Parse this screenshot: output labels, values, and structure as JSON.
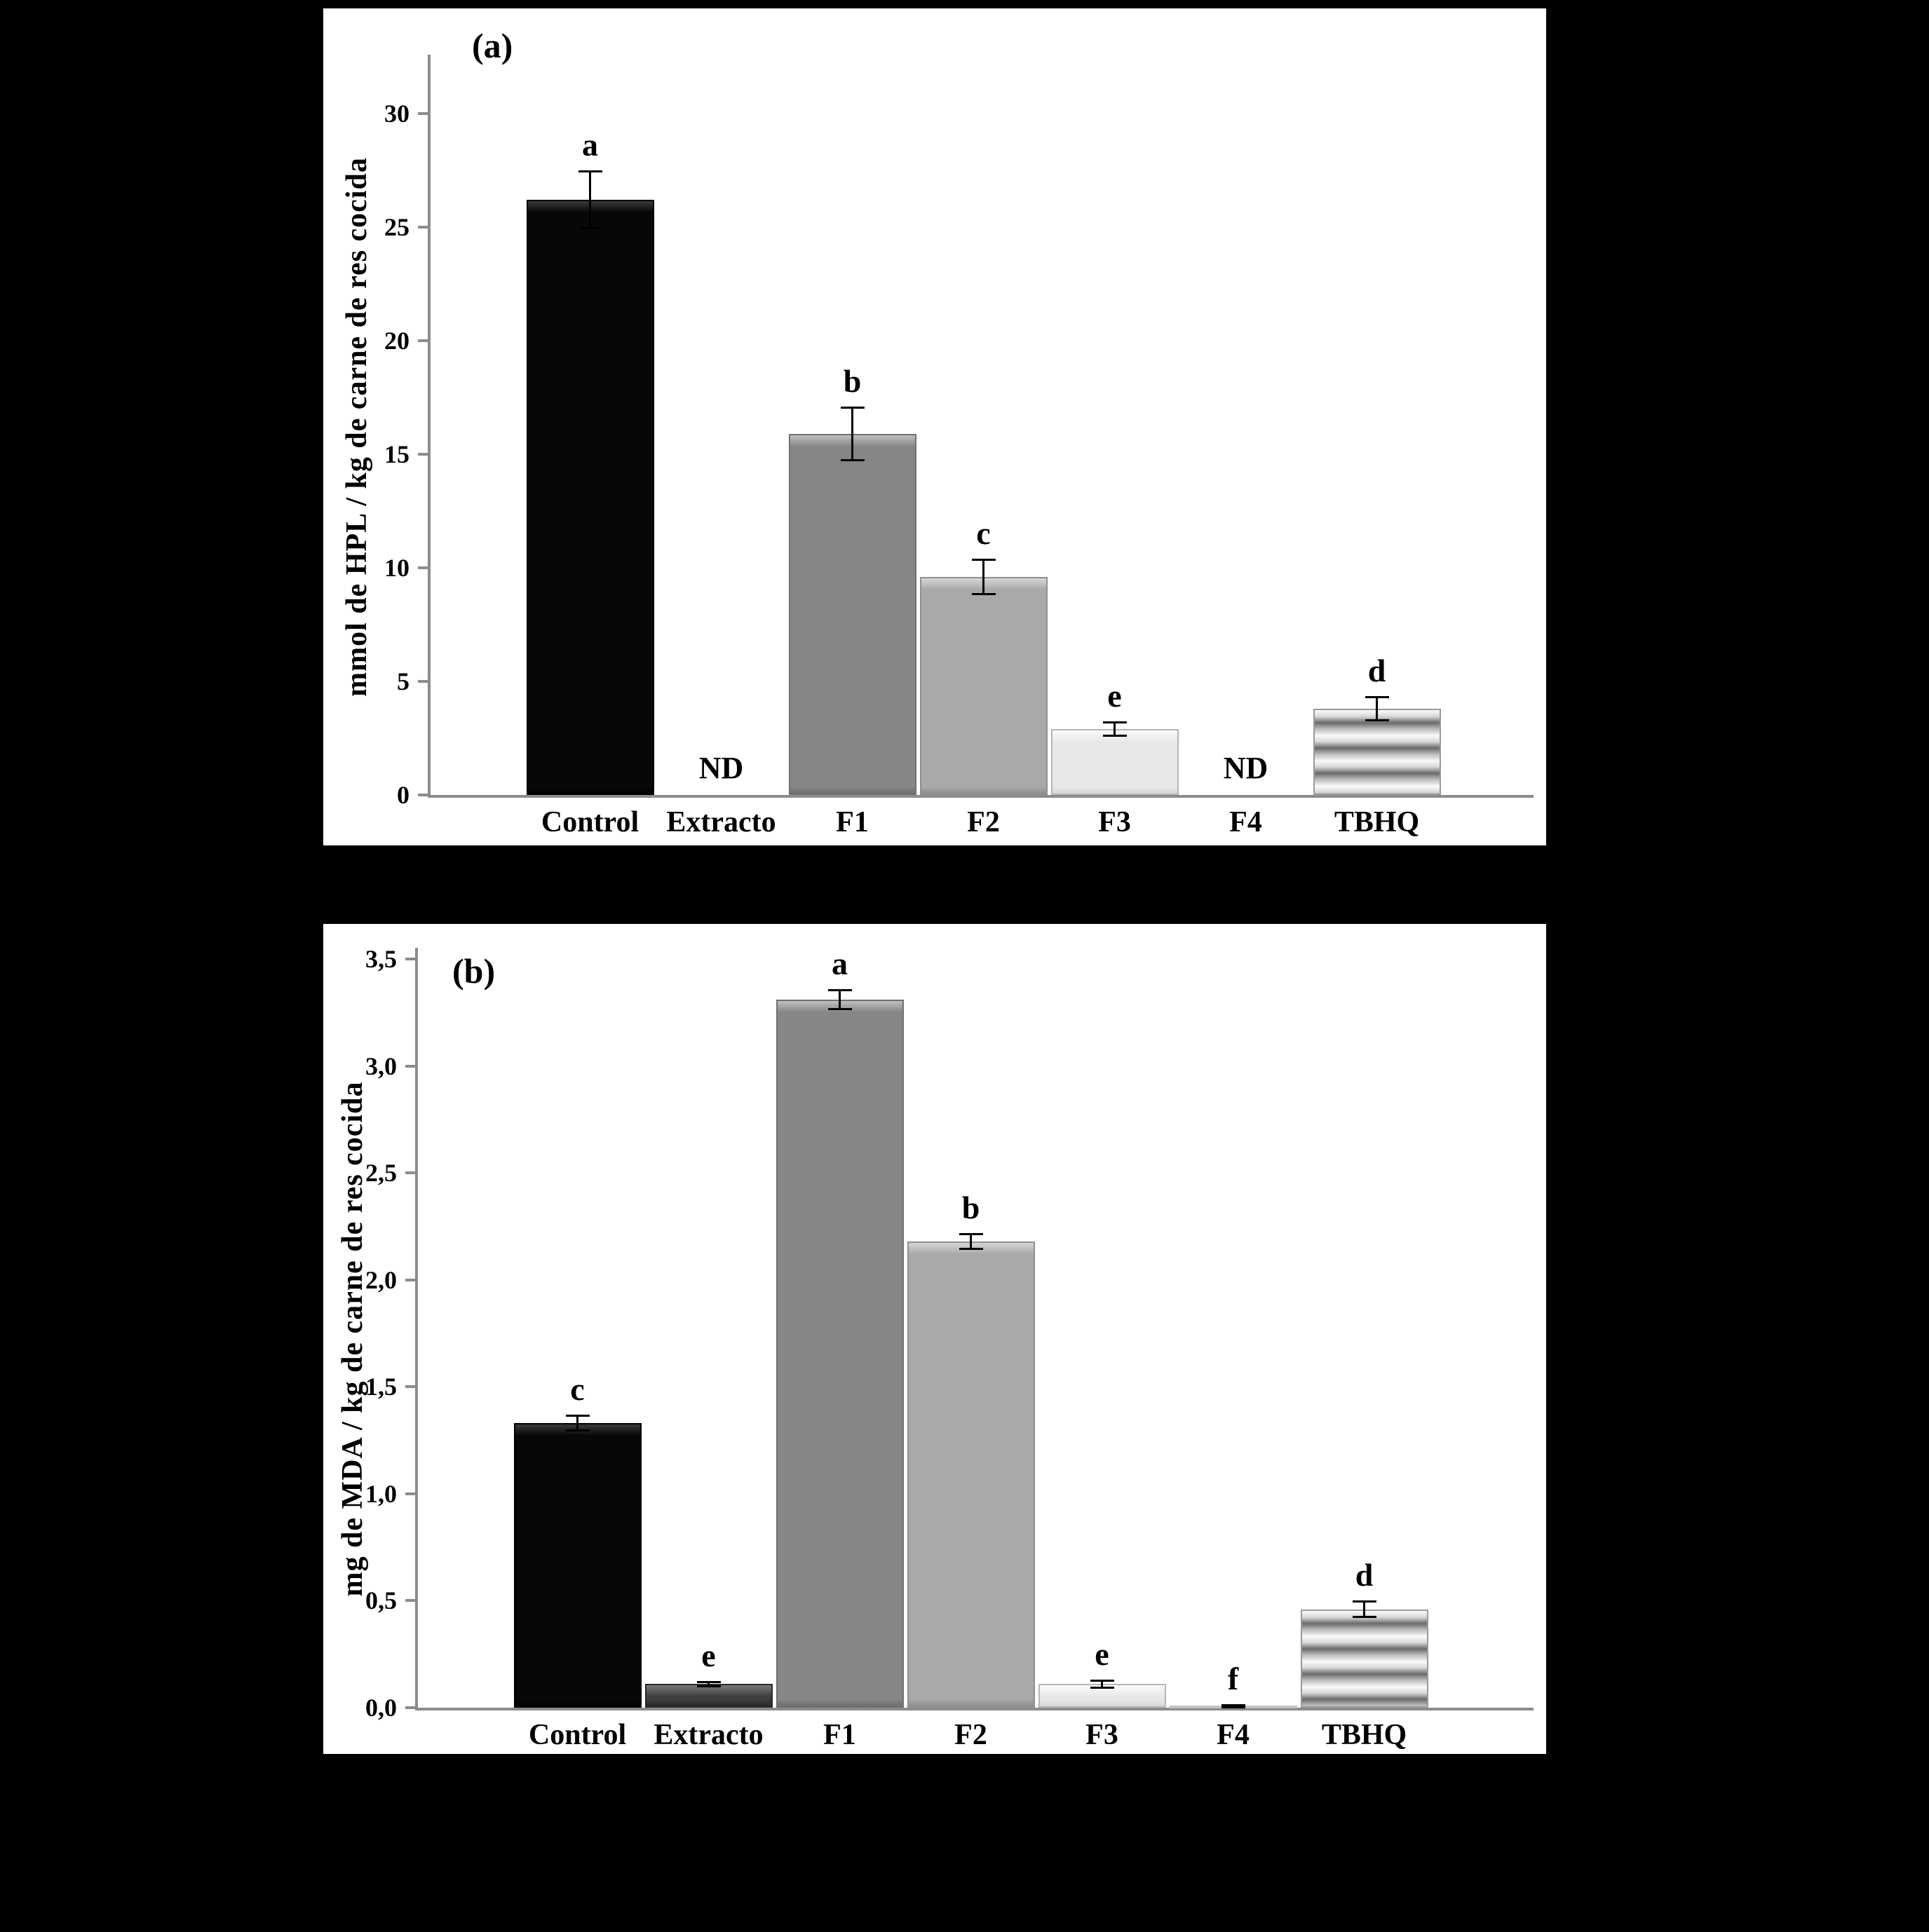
{
  "background": "#000000",
  "panel_background": "#ffffff",
  "axis_color": "#8c8c8c",
  "text_color": "#000000",
  "chart_data": [
    {
      "id": "a",
      "type": "bar",
      "panel_label": "(a)",
      "title": "",
      "xlabel": "",
      "ylabel": "mmol de HPL / kg de carne de res cocida",
      "categories": [
        "Control",
        "Extracto",
        "F1",
        "F2",
        "F3",
        "F4",
        "TBHQ"
      ],
      "values": [
        26.2,
        null,
        15.9,
        9.6,
        2.9,
        null,
        3.8
      ],
      "errors": [
        1.3,
        null,
        1.2,
        0.8,
        0.35,
        null,
        0.55
      ],
      "sig_letters": [
        "a",
        null,
        "b",
        "c",
        "e",
        null,
        "d"
      ],
      "nd_label": "ND",
      "ylim": [
        0,
        32.5
      ],
      "grid": false,
      "legend": false,
      "yticks": [
        {
          "label": "0",
          "value": 0
        },
        {
          "label": "5",
          "value": 5
        },
        {
          "label": "10",
          "value": 10
        },
        {
          "label": "15",
          "value": 15
        },
        {
          "label": "20",
          "value": 20
        },
        {
          "label": "25",
          "value": 25
        },
        {
          "label": "30",
          "value": 30
        }
      ],
      "bar_styles": [
        {
          "name": "control",
          "fill": "#070707",
          "light": "#3a3a3a",
          "dark": "#000000",
          "edge": "#000000"
        },
        {
          "name": "extracto",
          "fill": "#3e3e3e",
          "light": "#7a7a7a",
          "dark": "#262626",
          "edge": "#2a2a2a"
        },
        {
          "name": "f1",
          "fill": "#868686",
          "light": "#c0c0c0",
          "dark": "#6e6e6e",
          "edge": "#707070"
        },
        {
          "name": "f2",
          "fill": "#a9a9a9",
          "light": "#d6d6d6",
          "dark": "#8f8f8f",
          "edge": "#8f8f8f"
        },
        {
          "name": "f3",
          "fill": "#e8e8e8",
          "light": "#fbfbfb",
          "dark": "#d6d6d6",
          "edge": "#b5b5b5"
        },
        {
          "name": "f4",
          "fill": "#f1f1f1",
          "light": "#ffffff",
          "dark": "#e2e2e2",
          "edge": "#c2c2c2"
        },
        {
          "name": "tbhq",
          "pattern": "horizontal-stripes",
          "stripe_colors": [
            "#fbfbfb",
            "#d8d8d8",
            "#6a6a6a",
            "#bdbdbd",
            "#f7f7f7"
          ],
          "edge": "#9a9a9a"
        }
      ]
    },
    {
      "id": "b",
      "type": "bar",
      "panel_label": "(b)",
      "title": "",
      "xlabel": "",
      "ylabel": "mg de MDA / kg de carne de res cocida",
      "categories": [
        "Control",
        "Extracto",
        "F1",
        "F2",
        "F3",
        "F4",
        "TBHQ"
      ],
      "values": [
        1.33,
        0.11,
        3.31,
        2.18,
        0.11,
        0.01,
        0.46
      ],
      "errors": [
        0.04,
        0.015,
        0.05,
        0.04,
        0.02,
        0.008,
        0.04
      ],
      "sig_letters": [
        "c",
        "e",
        "a",
        "b",
        "e",
        "f",
        "d"
      ],
      "nd_label": "ND",
      "ylim": [
        0,
        3.55
      ],
      "grid": false,
      "legend": false,
      "yticks": [
        {
          "label": "0,0",
          "value": 0
        },
        {
          "label": "0,5",
          "value": 0.5
        },
        {
          "label": "1,0",
          "value": 1
        },
        {
          "label": "1,5",
          "value": 1.5
        },
        {
          "label": "2,0",
          "value": 2
        },
        {
          "label": "2,5",
          "value": 2.5
        },
        {
          "label": "3,0",
          "value": 3
        },
        {
          "label": "3,5",
          "value": 3.5
        }
      ],
      "bar_styles": [
        {
          "name": "control",
          "fill": "#070707",
          "light": "#3a3a3a",
          "dark": "#000000",
          "edge": "#000000"
        },
        {
          "name": "extracto",
          "fill": "#3e3e3e",
          "light": "#7a7a7a",
          "dark": "#262626",
          "edge": "#2a2a2a"
        },
        {
          "name": "f1",
          "fill": "#868686",
          "light": "#c0c0c0",
          "dark": "#6e6e6e",
          "edge": "#707070"
        },
        {
          "name": "f2",
          "fill": "#a9a9a9",
          "light": "#d6d6d6",
          "dark": "#8f8f8f",
          "edge": "#8f8f8f"
        },
        {
          "name": "f3",
          "fill": "#e8e8e8",
          "light": "#fbfbfb",
          "dark": "#d6d6d6",
          "edge": "#b5b5b5"
        },
        {
          "name": "f4",
          "fill": "#f1f1f1",
          "light": "#ffffff",
          "dark": "#e2e2e2",
          "edge": "#c2c2c2"
        },
        {
          "name": "tbhq",
          "pattern": "horizontal-stripes",
          "stripe_colors": [
            "#fbfbfb",
            "#d8d8d8",
            "#6a6a6a",
            "#bdbdbd",
            "#f7f7f7"
          ],
          "edge": "#9a9a9a"
        }
      ]
    }
  ]
}
